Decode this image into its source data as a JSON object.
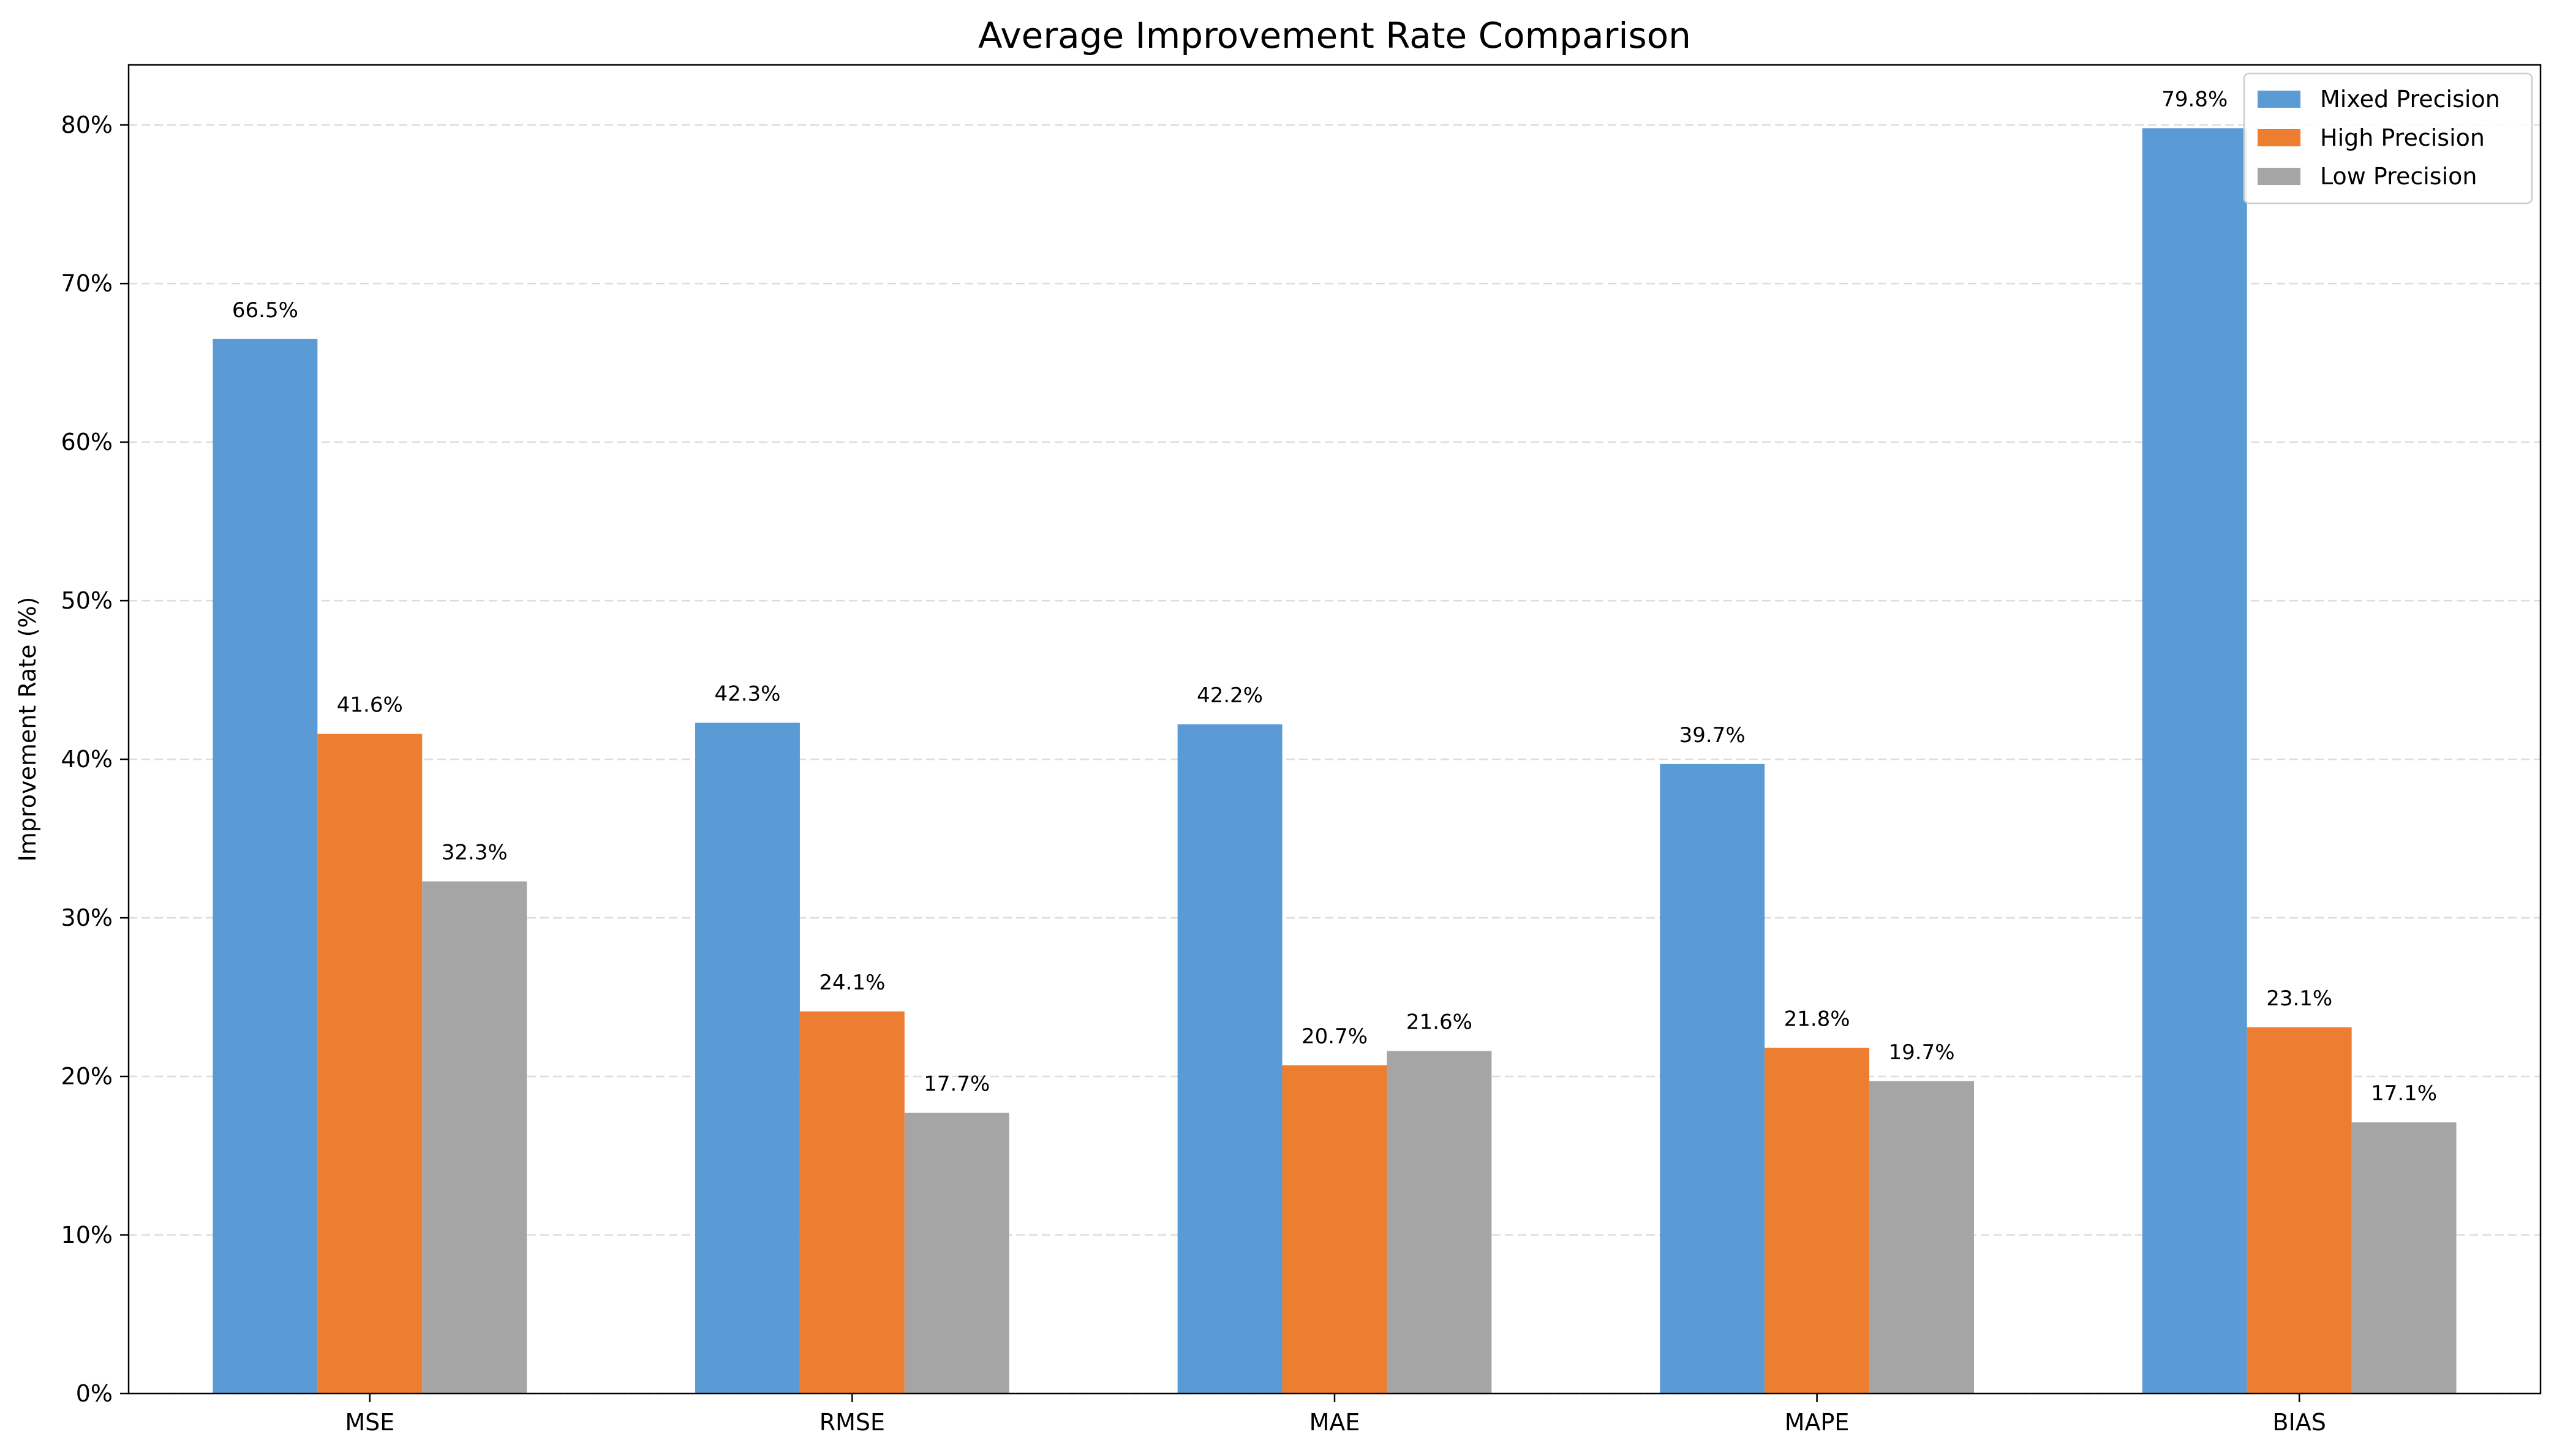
{
  "chart_data": {
    "type": "bar",
    "title": "Average Improvement Rate Comparison",
    "xlabel": "",
    "ylabel": "Improvement Rate (%)",
    "categories": [
      "MSE",
      "RMSE",
      "MAE",
      "MAPE",
      "BIAS"
    ],
    "series": [
      {
        "name": "Mixed Precision",
        "color": "#5b9bd5",
        "values": [
          66.5,
          42.3,
          42.2,
          39.7,
          79.8
        ],
        "labels": [
          "66.5%",
          "42.3%",
          "42.2%",
          "39.7%",
          "79.8%"
        ]
      },
      {
        "name": "High Precision",
        "color": "#ed7d31",
        "values": [
          41.6,
          24.1,
          20.7,
          21.8,
          23.1
        ],
        "labels": [
          "41.6%",
          "24.1%",
          "20.7%",
          "21.8%",
          "23.1%"
        ]
      },
      {
        "name": "Low Precision",
        "color": "#a5a5a5",
        "values": [
          32.3,
          17.7,
          21.6,
          19.7,
          17.1
        ],
        "labels": [
          "32.3%",
          "17.7%",
          "21.6%",
          "19.7%",
          "17.1%"
        ]
      }
    ],
    "ylim": [
      0,
      83.79
    ],
    "yticks": [
      0,
      10,
      20,
      30,
      40,
      50,
      60,
      70,
      80
    ],
    "ytick_labels": [
      "0%",
      "10%",
      "20%",
      "30%",
      "40%",
      "50%",
      "60%",
      "70%",
      "80%"
    ],
    "grid": "horizontal dashed",
    "legend_position": "top-right"
  }
}
